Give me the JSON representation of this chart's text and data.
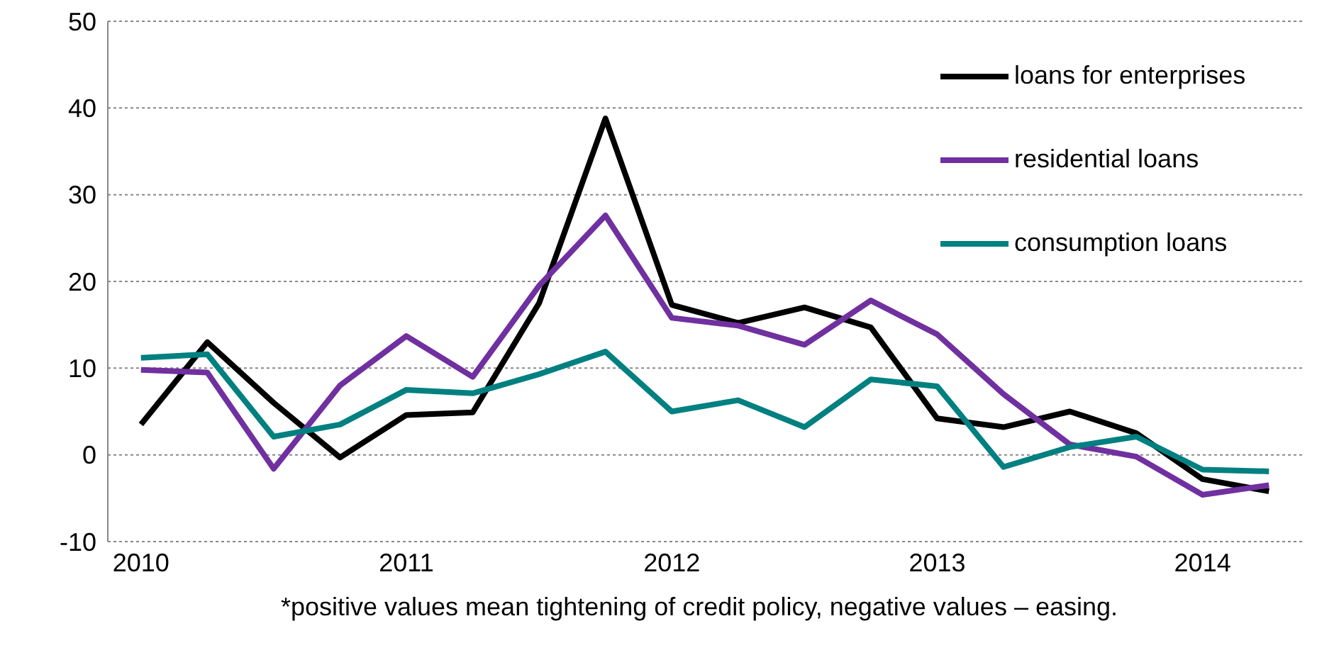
{
  "chart_data": {
    "type": "line",
    "x": [
      2010,
      2010.25,
      2010.5,
      2010.75,
      2011,
      2011.25,
      2011.5,
      2011.75,
      2012,
      2012.25,
      2012.5,
      2012.75,
      2013,
      2013.25,
      2013.5,
      2013.75,
      2014,
      2014.25
    ],
    "series": [
      {
        "name": "loans for enterprises",
        "color": "#000000",
        "values": [
          3.5,
          13,
          6,
          -0.3,
          4.6,
          4.9,
          17.5,
          38.8,
          17.3,
          15.2,
          17,
          14.7,
          4.2,
          3.2,
          5,
          2.5,
          -2.8,
          -4.2
        ]
      },
      {
        "name": "residential loans",
        "color": "#7030a0",
        "values": [
          9.8,
          9.5,
          -1.6,
          8,
          13.7,
          9,
          19.5,
          27.6,
          15.8,
          14.9,
          12.7,
          17.8,
          13.9,
          7,
          1.2,
          -0.2,
          -4.6,
          -3.5
        ]
      },
      {
        "name": "consumption loans",
        "color": "#008080",
        "values": [
          11.2,
          11.6,
          2.1,
          3.5,
          7.5,
          7.1,
          9.3,
          11.9,
          5,
          6.3,
          3.2,
          8.7,
          7.9,
          -1.4,
          0.9,
          2.1,
          -1.7,
          -1.9
        ]
      }
    ],
    "xlim": [
      2009.875,
      2014.375
    ],
    "xticks": [
      2010,
      2011,
      2012,
      2013,
      2014
    ],
    "ylim": [
      -10,
      50
    ],
    "yticks": [
      -10,
      0,
      10,
      20,
      30,
      40,
      50
    ],
    "grid": "y",
    "legend": "top right",
    "marker": "none",
    "line_style": "solid",
    "annotations": [
      "*positive values mean tightening of credit policy, negative values – easing."
    ]
  }
}
